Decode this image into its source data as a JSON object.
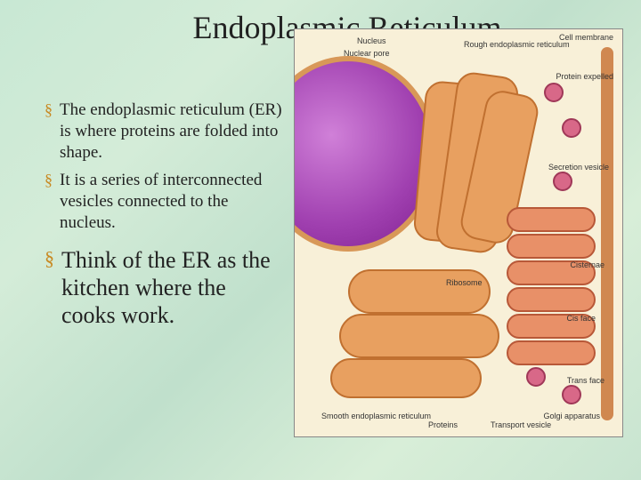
{
  "title": "Endoplasmic Reticulum",
  "bullets": [
    {
      "text": "The endoplasmic reticulum (ER) is where proteins are folded into shape.",
      "size": "normal"
    },
    {
      "text": "It is a series of interconnected vesicles connected to the nucleus.",
      "size": "normal"
    },
    {
      "text": "Think of the ER as the kitchen where the cooks work.",
      "size": "large"
    }
  ],
  "diagram_labels": {
    "nucleus": "Nucleus",
    "nuclear_pore": "Nuclear pore",
    "rough_er": "Rough\nendoplasmic\nreticulum",
    "cell_membrane": "Cell membrane",
    "protein_expelled": "Protein expelled",
    "secretion_vesicle": "Secretion\nvesicle",
    "ribosome": "Ribosome",
    "cisternae": "Cisternae",
    "cis_face": "Cis face",
    "trans_face": "Trans face",
    "golgi": "Golgi\napparatus",
    "proteins": "Proteins",
    "transport_vesicle": "Transport\nvesicle",
    "smooth_er": "Smooth\nendoplasmic\nreticulum"
  },
  "colors": {
    "background_gradient": [
      "#c8e8d4",
      "#d4ecd8",
      "#c0e0cc",
      "#d8eed8",
      "#c8e4d0"
    ],
    "bullet_mark": "#c88820",
    "text": "#222222",
    "diagram_bg": "#f8f0d8",
    "nucleus_fill": "#a040b0",
    "nucleus_border": "#d89858",
    "er_fill": "#e8a060",
    "er_border": "#c07030",
    "golgi_fill": "#e89068",
    "golgi_border": "#b85838",
    "vesicle_fill": "#d86888",
    "vesicle_border": "#a03858",
    "membrane": "#d08850"
  },
  "typography": {
    "title_fontsize": 36,
    "bullet_fontsize": 19,
    "bullet_large_fontsize": 26,
    "diagram_label_fontsize": 9,
    "font_family": "Times New Roman"
  },
  "layout": {
    "slide_width": 720,
    "slide_height": 540,
    "text_col_width": 300,
    "image_col_width": 370,
    "diagram_height": 460
  }
}
